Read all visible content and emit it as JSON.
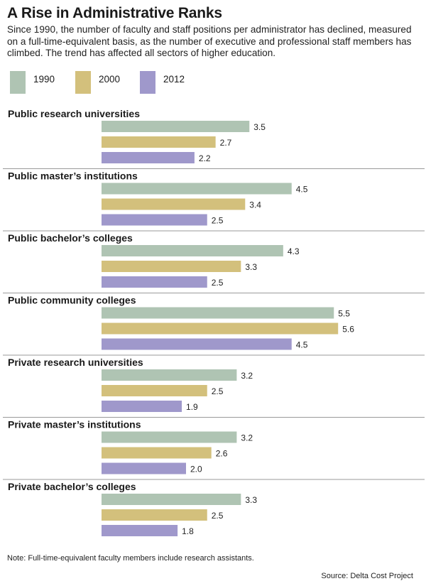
{
  "title": "A Rise in Administrative Ranks",
  "subtitle": "Since 1990, the number of faculty and staff positions per administrator has declined, measured on a full-time-equivalent basis, as the number of executive and professional staff members has climbed. The trend has affected all sectors of higher education.",
  "legend": [
    {
      "label": "1990",
      "color": "#afc4b3"
    },
    {
      "label": "2000",
      "color": "#d3c07c"
    },
    {
      "label": "2012",
      "color": "#9f98cb"
    }
  ],
  "note": "Note: Full-time-equivalent faculty members include research assistants.",
  "source": "Source: Delta Cost Project",
  "chart_data": {
    "type": "bar",
    "orientation": "horizontal",
    "grid": false,
    "legend_position": "top-left",
    "series_names": [
      "1990",
      "2000",
      "2012"
    ],
    "groups": [
      {
        "name": "Public research universities",
        "values": [
          3.5,
          2.7,
          2.2
        ],
        "labels": [
          "3.5",
          "2.7",
          "2.2"
        ]
      },
      {
        "name": "Public master’s institutions",
        "values": [
          4.5,
          3.4,
          2.5
        ],
        "labels": [
          "4.5",
          "3.4",
          "2.5"
        ]
      },
      {
        "name": "Public bachelor’s colleges",
        "values": [
          4.3,
          3.3,
          2.5
        ],
        "labels": [
          "4.3",
          "3.3",
          "2.5"
        ]
      },
      {
        "name": "Public community colleges",
        "values": [
          5.5,
          5.6,
          4.5
        ],
        "labels": [
          "5.5",
          "5.6",
          "4.5"
        ]
      },
      {
        "name": "Private research universities",
        "values": [
          3.2,
          2.5,
          1.9
        ],
        "labels": [
          "3.2",
          "2.5",
          "1.9"
        ]
      },
      {
        "name": "Private master’s institutions",
        "values": [
          3.2,
          2.6,
          2.0
        ],
        "labels": [
          "3.2",
          "2.6",
          "2.0"
        ]
      },
      {
        "name": "Private bachelor’s colleges",
        "values": [
          3.3,
          2.5,
          1.8
        ],
        "labels": [
          "3.3",
          "2.5",
          "1.8"
        ]
      }
    ]
  }
}
